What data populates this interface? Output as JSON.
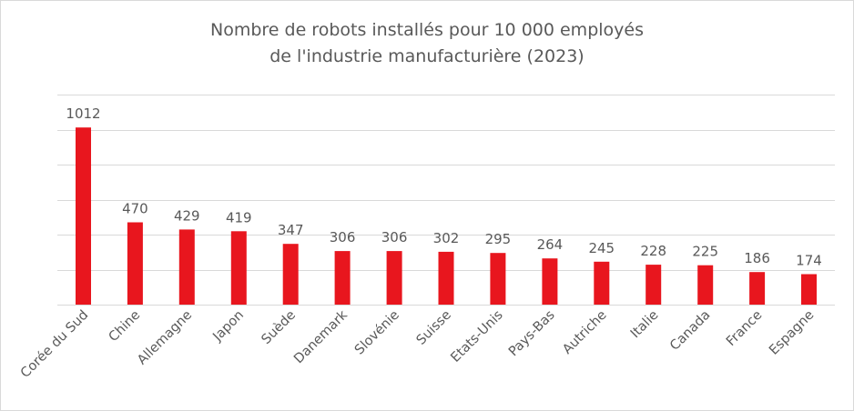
{
  "chart_data": {
    "type": "bar",
    "title_line1": "Nombre de robots installés pour 10 000 employés",
    "title_line2": "de l'industrie manufacturière (2023)",
    "categories": [
      "Corée du Sud",
      "Chine",
      "Allemagne",
      "Japon",
      "Suède",
      "Danemark",
      "Slovénie",
      "Suisse",
      "Etats-Unis",
      "Pays-Bas",
      "Autriche",
      "Italie",
      "Canada",
      "France",
      "Espagne"
    ],
    "series": [
      {
        "values": [
          1012,
          470,
          429,
          419,
          347,
          306,
          306,
          302,
          295,
          264,
          245,
          228,
          225,
          186,
          174
        ]
      }
    ],
    "ylim": [
      0,
      1200
    ],
    "y_gridline_step": 200,
    "y_tick_labels_shown": false,
    "gridlines": true,
    "data_labels": true,
    "bar_color": "#e8161e",
    "gridline_color": "#d9d9d9",
    "text_color": "#595959"
  }
}
